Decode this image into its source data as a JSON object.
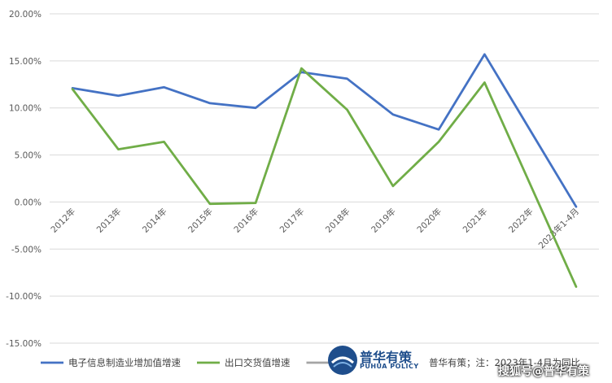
{
  "chart_data": {
    "type": "line",
    "categories": [
      "2012年",
      "2013年",
      "2014年",
      "2015年",
      "2016年",
      "2017年",
      "2018年",
      "2019年",
      "2020年",
      "2021年",
      "2022年",
      "2023年1-4月"
    ],
    "series": [
      {
        "name": "电子信息制造业增加值增速",
        "color": "#4472C4",
        "values": [
          12.1,
          11.3,
          12.2,
          10.5,
          10.0,
          13.8,
          13.1,
          9.3,
          7.7,
          15.7,
          null,
          -0.5
        ]
      },
      {
        "name": "出口交货值增速",
        "color": "#70AD47",
        "values": [
          12.0,
          5.6,
          6.4,
          -0.2,
          -0.1,
          14.2,
          9.8,
          1.7,
          6.4,
          12.7,
          null,
          -9.0
        ]
      }
    ],
    "yticks": [
      "-15.00%",
      "-10.00%",
      "-5.00%",
      "0.00%",
      "5.00%",
      "10.00%",
      "15.00%",
      "20.00%"
    ],
    "ylim": [
      -15,
      20
    ],
    "grid": true,
    "legend_position": "bottom",
    "legend_extra": {
      "name": "资料",
      "color": "#A5A5A5"
    },
    "source_note": "普华有策；注：2023年1-4月为同比"
  },
  "logo": {
    "cn": "普华有策",
    "en": "PUHUA POLICY"
  },
  "watermark": "搜狐号@普华有策"
}
